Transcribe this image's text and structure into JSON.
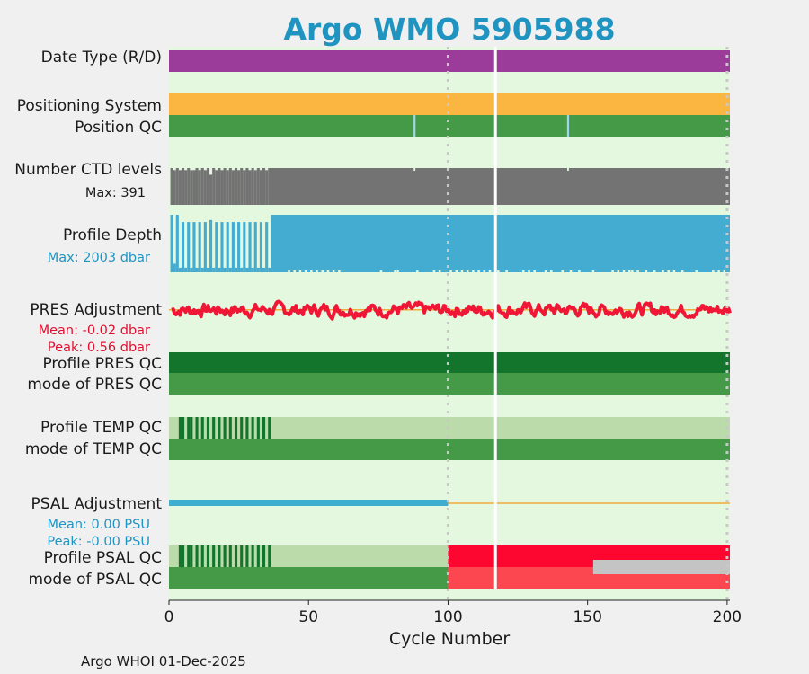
{
  "chart_data": {
    "type": "status-timeline",
    "title": "Argo WMO 5905988",
    "xlabel": "Cycle Number",
    "xlim": [
      0,
      201
    ],
    "xticks": [
      "0",
      "50",
      "100",
      "150",
      "200"
    ],
    "footer": "Argo WHOI 01-Dec-2025",
    "vertical_line_cycle": 117,
    "dotted_gridlines_cycles": [
      100,
      200
    ],
    "rows": {
      "date_type": {
        "label": "Date Type (R/D)",
        "segments": [
          {
            "start": 0,
            "end": 201,
            "status": "D"
          }
        ]
      },
      "positioning_system": {
        "label": "Positioning System",
        "segments": [
          {
            "start": 0,
            "end": 201,
            "status": "GPS"
          }
        ]
      },
      "position_qc": {
        "label": "Position QC",
        "value": "1",
        "gaps_at_cycles": [
          88,
          143
        ]
      },
      "ctd_levels": {
        "label": "Number CTD levels",
        "max_text": "Max: 391",
        "max": 391,
        "values_cycles_1_36": [
          391,
          369,
          391,
          369,
          391,
          369,
          391,
          369,
          369,
          391,
          369,
          391,
          369,
          391,
          320,
          391,
          369,
          391,
          369,
          391,
          369,
          391,
          369,
          391,
          369,
          391,
          369,
          391,
          369,
          391,
          369,
          391,
          369,
          391,
          369,
          391
        ],
        "values_cycles_37_201": 391
      },
      "profile_depth": {
        "label": "Profile Depth",
        "max_text": "Max: 2003 dbar",
        "max": 2003,
        "values_cycles_1_36": [
          2003,
          300,
          2003,
          160,
          1750,
          160,
          1750,
          160,
          1750,
          160,
          1750,
          160,
          1750,
          160,
          1820,
          160,
          1750,
          160,
          1750,
          160,
          1750,
          160,
          1750,
          160,
          1750,
          160,
          1750,
          160,
          1750,
          160,
          1750,
          160,
          1750,
          160,
          1750,
          160
        ],
        "deep_default": 2003,
        "shallow_dip_value": 1940,
        "shallow_dip_cycles": [
          43,
          45,
          47,
          49,
          51,
          53,
          55,
          57,
          59,
          61,
          76,
          81,
          82,
          89,
          95,
          97,
          101,
          103,
          105,
          107,
          109,
          111,
          113,
          115,
          118,
          121,
          127,
          129,
          131,
          135,
          137,
          141,
          144,
          147,
          152,
          159,
          161,
          163,
          165,
          166,
          168,
          171,
          174,
          177,
          179,
          181,
          184,
          189,
          195,
          197,
          199
        ]
      },
      "pres_adjustment": {
        "label": "PRES Adjustment",
        "mean_text": "Mean: -0.02 dbar",
        "peak_text": "Peak: 0.56 dbar",
        "mean": -0.02,
        "peak": 0.56,
        "ylim": [
          -0.7,
          0.7
        ]
      },
      "profile_pres_qc": {
        "label": "Profile PRES QC",
        "value": "A"
      },
      "mode_pres_qc": {
        "label": "mode of PRES QC",
        "value": "1"
      },
      "profile_temp_qc": {
        "label": "Profile TEMP QC",
        "value": "A",
        "dark_cycles": [
          4,
          5,
          7,
          8,
          10,
          12,
          14,
          16,
          18,
          20,
          22,
          24,
          26,
          28,
          30,
          32,
          34,
          36
        ]
      },
      "mode_temp_qc": {
        "label": "mode of TEMP QC",
        "value": "1"
      },
      "psal_adjustment": {
        "label": "PSAL Adjustment",
        "mean_text": "Mean: 0.00 PSU",
        "peak_text": "Peak: -0.00 PSU",
        "mean": 0.0,
        "peak": -0.0,
        "adjusted_until_cycle": 100
      },
      "profile_psal_qc": {
        "label": "Profile PSAL QC",
        "dark_cycles": [
          4,
          5,
          7,
          8,
          10,
          12,
          14,
          16,
          18,
          20,
          22,
          24,
          26,
          28,
          30,
          32,
          34,
          36
        ],
        "segments": [
          {
            "start": 0,
            "end": 100,
            "status": "A"
          },
          {
            "start": 100,
            "end": 201,
            "status": "F"
          }
        ]
      },
      "mode_psal_qc": {
        "label": "mode of PSAL QC",
        "segments": [
          {
            "start": 0,
            "end": 100,
            "status": "1"
          },
          {
            "start": 100,
            "end": 201,
            "status": "4"
          }
        ],
        "missing_from_cycle": 152
      }
    },
    "colors": {
      "background": "#e3f8de",
      "date_type": "#9b3c9b",
      "positioning": "#fbb541",
      "qc_good": "#459a47",
      "qc_dark": "#13742b",
      "qc_light": "#bcdbaa",
      "ctd": "#737373",
      "depth": "#45acd1",
      "depth_label": "#1f94c1",
      "pres_line": "#ef1636",
      "pres_label": "#e01030",
      "orange_line": "#f2aa3a",
      "psal_line": "#3eaed0",
      "psal_label": "#1f94c1",
      "bad": "#fd0730",
      "bad_mode": "#fd4750",
      "missing": "#c4c4c4",
      "title": "#1f94c1",
      "white_line": "#ffffff",
      "grid": "#c8c8c8"
    }
  }
}
